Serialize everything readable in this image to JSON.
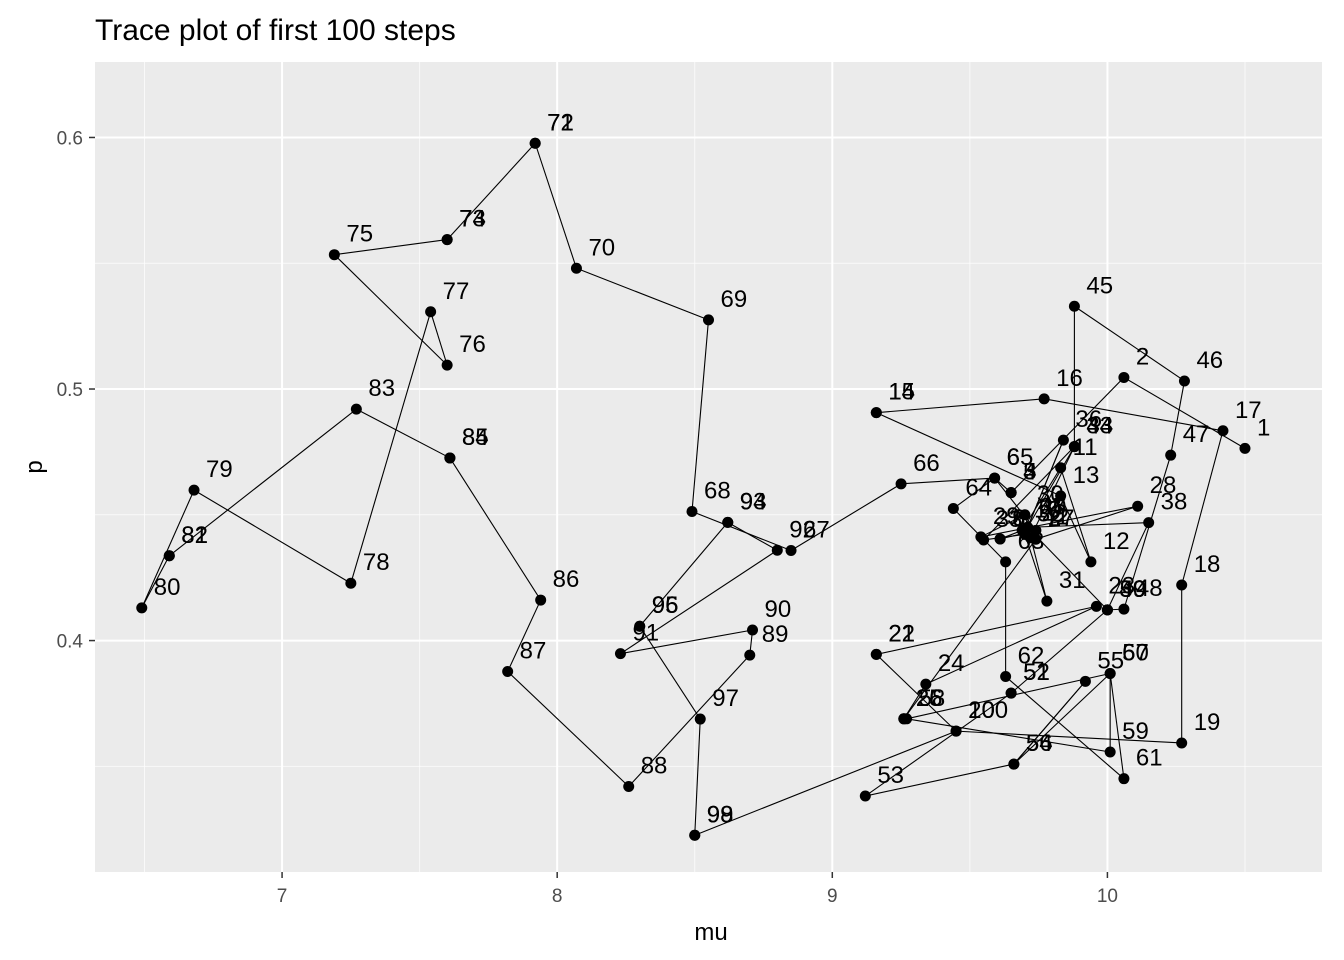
{
  "chart_data": {
    "type": "line",
    "title": "Trace plot of first 100 steps",
    "xlabel": "mu",
    "ylabel": "p",
    "xlim": [
      6.32,
      10.78
    ],
    "ylim": [
      0.308,
      0.63
    ],
    "x_major_ticks": [
      7,
      8,
      9,
      10
    ],
    "x_minor_ticks": [
      6.5,
      7.5,
      8.5,
      9.5,
      10.5
    ],
    "y_major_ticks": [
      0.4,
      0.5,
      0.6
    ],
    "y_minor_ticks": [
      0.35,
      0.45,
      0.55
    ],
    "tick_labels_x": [
      "7",
      "8",
      "9",
      "10"
    ],
    "tick_labels_y": [
      "0.4",
      "0.5",
      "0.6"
    ],
    "grid": true,
    "panel_background": "#ebebeb",
    "grid_color": "#ffffff",
    "point_color": "#000000",
    "line_color": "#000000",
    "points": [
      {
        "step": 1,
        "x": 10.5,
        "y": 0.4764
      },
      {
        "step": 2,
        "x": 10.06,
        "y": 0.5046
      },
      {
        "step": 3,
        "x": 9.65,
        "y": 0.4588
      },
      {
        "step": 4,
        "x": 9.65,
        "y": 0.4588
      },
      {
        "step": 5,
        "x": 9.65,
        "y": 0.4588
      },
      {
        "step": 6,
        "x": 9.59,
        "y": 0.4646
      },
      {
        "step": 7,
        "x": 9.74,
        "y": 0.4438
      },
      {
        "step": 8,
        "x": 9.61,
        "y": 0.4404
      },
      {
        "step": 9,
        "x": 9.61,
        "y": 0.4404
      },
      {
        "step": 10,
        "x": 9.69,
        "y": 0.4438
      },
      {
        "step": 11,
        "x": 9.83,
        "y": 0.4687
      },
      {
        "step": 12,
        "x": 9.94,
        "y": 0.4313
      },
      {
        "step": 13,
        "x": 9.83,
        "y": 0.4575
      },
      {
        "step": 14,
        "x": 9.16,
        "y": 0.4906
      },
      {
        "step": 15,
        "x": 9.16,
        "y": 0.4906
      },
      {
        "step": 16,
        "x": 9.77,
        "y": 0.4961
      },
      {
        "step": 17,
        "x": 10.42,
        "y": 0.4834
      },
      {
        "step": 18,
        "x": 10.27,
        "y": 0.4221
      },
      {
        "step": 19,
        "x": 10.27,
        "y": 0.3593
      },
      {
        "step": 20,
        "x": 9.45,
        "y": 0.364
      },
      {
        "step": 21,
        "x": 9.16,
        "y": 0.3945
      },
      {
        "step": 22,
        "x": 9.16,
        "y": 0.3945
      },
      {
        "step": 23,
        "x": 9.96,
        "y": 0.4136
      },
      {
        "step": 24,
        "x": 9.34,
        "y": 0.3827
      },
      {
        "step": 25,
        "x": 9.26,
        "y": 0.3689
      },
      {
        "step": 26,
        "x": 9.26,
        "y": 0.3689
      },
      {
        "step": 27,
        "x": 9.74,
        "y": 0.4403
      },
      {
        "step": 28,
        "x": 10.11,
        "y": 0.4534
      },
      {
        "step": 29,
        "x": 9.54,
        "y": 0.4412
      },
      {
        "step": 30,
        "x": 9.7,
        "y": 0.45
      },
      {
        "step": 31,
        "x": 9.78,
        "y": 0.4157
      },
      {
        "step": 32,
        "x": 9.7,
        "y": 0.4422
      },
      {
        "step": 33,
        "x": 9.55,
        "y": 0.44
      },
      {
        "step": 34,
        "x": 9.88,
        "y": 0.4771
      },
      {
        "step": 35,
        "x": 9.71,
        "y": 0.445
      },
      {
        "step": 36,
        "x": 9.84,
        "y": 0.4797
      },
      {
        "step": 37,
        "x": 9.71,
        "y": 0.445
      },
      {
        "step": 38,
        "x": 10.15,
        "y": 0.4469
      },
      {
        "step": 39,
        "x": 10.0,
        "y": 0.4122
      },
      {
        "step": 40,
        "x": 9.71,
        "y": 0.445
      },
      {
        "step": 41,
        "x": 9.72,
        "y": 0.4409
      },
      {
        "step": 42,
        "x": 9.72,
        "y": 0.4409
      },
      {
        "step": 43,
        "x": 9.88,
        "y": 0.4771
      },
      {
        "step": 44,
        "x": 9.88,
        "y": 0.4771
      },
      {
        "step": 45,
        "x": 9.88,
        "y": 0.5329
      },
      {
        "step": 46,
        "x": 10.28,
        "y": 0.5032
      },
      {
        "step": 47,
        "x": 10.23,
        "y": 0.4737
      },
      {
        "step": 48,
        "x": 10.06,
        "y": 0.4125
      },
      {
        "step": 49,
        "x": 10.0,
        "y": 0.4122
      },
      {
        "step": 50,
        "x": 10.0,
        "y": 0.4122
      },
      {
        "step": 51,
        "x": 9.65,
        "y": 0.3791
      },
      {
        "step": 52,
        "x": 9.65,
        "y": 0.3791
      },
      {
        "step": 53,
        "x": 9.12,
        "y": 0.3382
      },
      {
        "step": 54,
        "x": 9.66,
        "y": 0.3509
      },
      {
        "step": 55,
        "x": 9.92,
        "y": 0.3838
      },
      {
        "step": 56,
        "x": 9.66,
        "y": 0.3509
      },
      {
        "step": 57,
        "x": 10.01,
        "y": 0.3869
      },
      {
        "step": 58,
        "x": 9.27,
        "y": 0.3689
      },
      {
        "step": 59,
        "x": 10.01,
        "y": 0.3557
      },
      {
        "step": 60,
        "x": 10.01,
        "y": 0.3869
      },
      {
        "step": 61,
        "x": 10.06,
        "y": 0.3451
      },
      {
        "step": 62,
        "x": 9.63,
        "y": 0.3857
      },
      {
        "step": 63,
        "x": 9.63,
        "y": 0.4313
      },
      {
        "step": 64,
        "x": 9.44,
        "y": 0.4525
      },
      {
        "step": 65,
        "x": 9.59,
        "y": 0.4646
      },
      {
        "step": 66,
        "x": 9.25,
        "y": 0.4623
      },
      {
        "step": 67,
        "x": 8.85,
        "y": 0.4358
      },
      {
        "step": 68,
        "x": 8.49,
        "y": 0.4513
      },
      {
        "step": 69,
        "x": 8.55,
        "y": 0.5275
      },
      {
        "step": 70,
        "x": 8.07,
        "y": 0.548
      },
      {
        "step": 71,
        "x": 7.92,
        "y": 0.5977
      },
      {
        "step": 72,
        "x": 7.92,
        "y": 0.5977
      },
      {
        "step": 73,
        "x": 7.6,
        "y": 0.5594
      },
      {
        "step": 74,
        "x": 7.6,
        "y": 0.5594
      },
      {
        "step": 75,
        "x": 7.19,
        "y": 0.5534
      },
      {
        "step": 76,
        "x": 7.6,
        "y": 0.5095
      },
      {
        "step": 77,
        "x": 7.54,
        "y": 0.5307
      },
      {
        "step": 78,
        "x": 7.25,
        "y": 0.4228
      },
      {
        "step": 79,
        "x": 6.68,
        "y": 0.4598
      },
      {
        "step": 80,
        "x": 6.49,
        "y": 0.413
      },
      {
        "step": 81,
        "x": 6.59,
        "y": 0.4337
      },
      {
        "step": 82,
        "x": 6.59,
        "y": 0.4337
      },
      {
        "step": 83,
        "x": 7.27,
        "y": 0.492
      },
      {
        "step": 84,
        "x": 7.61,
        "y": 0.4726
      },
      {
        "step": 85,
        "x": 7.61,
        "y": 0.4726
      },
      {
        "step": 86,
        "x": 7.94,
        "y": 0.4161
      },
      {
        "step": 87,
        "x": 7.82,
        "y": 0.3877
      },
      {
        "step": 88,
        "x": 8.26,
        "y": 0.342
      },
      {
        "step": 89,
        "x": 8.7,
        "y": 0.3942
      },
      {
        "step": 90,
        "x": 8.71,
        "y": 0.4042
      },
      {
        "step": 91,
        "x": 8.23,
        "y": 0.3948
      },
      {
        "step": 92,
        "x": 8.8,
        "y": 0.4359
      },
      {
        "step": 93,
        "x": 8.62,
        "y": 0.447
      },
      {
        "step": 94,
        "x": 8.62,
        "y": 0.447
      },
      {
        "step": 95,
        "x": 8.3,
        "y": 0.4057
      },
      {
        "step": 96,
        "x": 8.3,
        "y": 0.4057
      },
      {
        "step": 97,
        "x": 8.52,
        "y": 0.3688
      },
      {
        "step": 98,
        "x": 8.5,
        "y": 0.3226
      },
      {
        "step": 99,
        "x": 8.5,
        "y": 0.3226
      },
      {
        "step": 100,
        "x": 9.45,
        "y": 0.364
      }
    ]
  }
}
